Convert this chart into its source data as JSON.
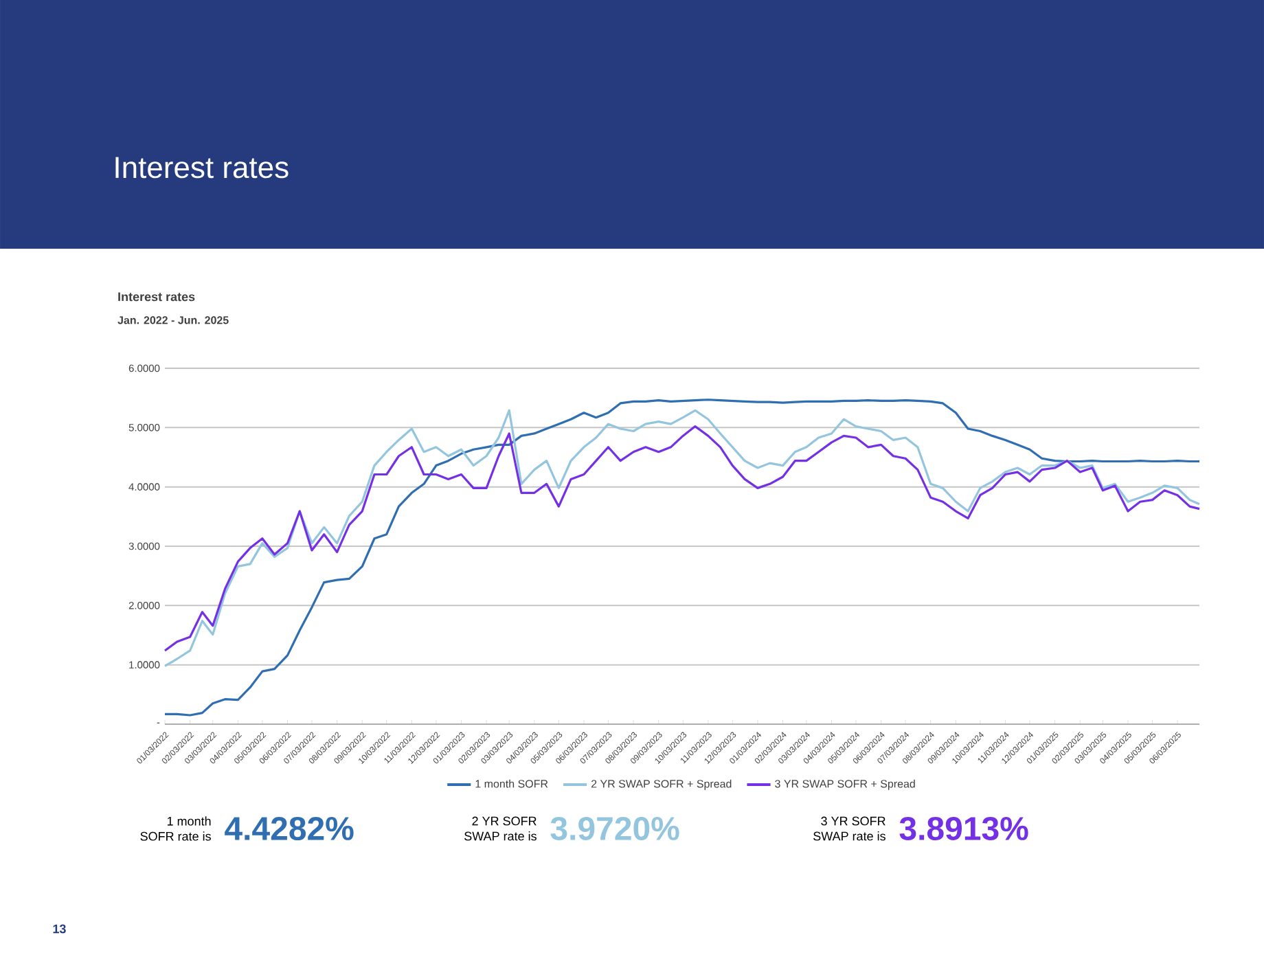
{
  "chart_data": {
    "type": "line",
    "title": "Interest rates",
    "subtitle": "Jan. 2022 - Jun. 2025",
    "annotations": [
      "Interest rates",
      "1 month SOFR rate is",
      "4.4282%",
      "2 YR SOFR SWAP rate is",
      "3.9720%",
      "3 YR SOFR SWAP rate is",
      "3.8913%",
      "13"
    ],
    "x": [
      "2022-01-03",
      "2022-01-18",
      "2022-02-03",
      "2022-02-18",
      "2022-03-03",
      "2022-03-18",
      "2022-04-03",
      "2022-04-18",
      "2022-05-03",
      "2022-05-18",
      "2022-06-03",
      "2022-06-18",
      "2022-07-03",
      "2022-07-18",
      "2022-08-03",
      "2022-08-18",
      "2022-09-03",
      "2022-09-18",
      "2022-10-03",
      "2022-10-18",
      "2022-11-03",
      "2022-11-18",
      "2022-12-03",
      "2022-12-18",
      "2023-01-03",
      "2023-01-18",
      "2023-02-03",
      "2023-02-18",
      "2023-03-03",
      "2023-03-18",
      "2023-04-03",
      "2023-04-18",
      "2023-05-03",
      "2023-05-18",
      "2023-06-03",
      "2023-06-18",
      "2023-07-03",
      "2023-07-18",
      "2023-08-03",
      "2023-08-18",
      "2023-09-03",
      "2023-09-18",
      "2023-10-03",
      "2023-10-18",
      "2023-11-03",
      "2023-11-18",
      "2023-12-03",
      "2023-12-18",
      "2024-01-03",
      "2024-01-18",
      "2024-02-03",
      "2024-02-18",
      "2024-03-03",
      "2024-03-18",
      "2024-04-03",
      "2024-04-18",
      "2024-05-03",
      "2024-05-18",
      "2024-06-03",
      "2024-06-18",
      "2024-07-03",
      "2024-07-18",
      "2024-08-03",
      "2024-08-18",
      "2024-09-03",
      "2024-09-18",
      "2024-10-03",
      "2024-10-18",
      "2024-11-03",
      "2024-11-18",
      "2024-12-03",
      "2024-12-18",
      "2025-01-03",
      "2025-01-18",
      "2025-02-03",
      "2025-02-18",
      "2025-03-03",
      "2025-03-18",
      "2025-04-03",
      "2025-04-18",
      "2025-05-03",
      "2025-05-18",
      "2025-06-03",
      "2025-06-18",
      "2025-06-30"
    ],
    "series": [
      {
        "name": "1 month SOFR",
        "color": "#2f6eb0",
        "values": [
          0.17,
          0.17,
          0.15,
          0.19,
          0.35,
          0.42,
          0.41,
          0.62,
          0.89,
          0.93,
          1.16,
          1.58,
          1.97,
          2.39,
          2.43,
          2.45,
          2.66,
          3.13,
          3.2,
          3.67,
          3.9,
          4.05,
          4.36,
          4.44,
          4.56,
          4.63,
          4.67,
          4.71,
          4.71,
          4.86,
          4.9,
          4.98,
          5.06,
          5.14,
          5.25,
          5.17,
          5.25,
          5.41,
          5.44,
          5.44,
          5.46,
          5.44,
          5.45,
          5.46,
          5.47,
          5.46,
          5.45,
          5.44,
          5.43,
          5.43,
          5.42,
          5.43,
          5.44,
          5.44,
          5.44,
          5.45,
          5.45,
          5.46,
          5.45,
          5.45,
          5.46,
          5.45,
          5.44,
          5.41,
          5.25,
          4.98,
          4.94,
          4.86,
          4.79,
          4.71,
          4.63,
          4.48,
          4.44,
          4.43,
          4.43,
          4.44,
          4.43,
          4.43,
          4.43,
          4.44,
          4.43,
          4.43,
          4.44,
          4.43,
          4.43
        ]
      },
      {
        "name": "2 YR SWAP SOFR + Spread",
        "color": "#93c5df",
        "values": [
          0.98,
          1.1,
          1.24,
          1.74,
          1.51,
          2.2,
          2.66,
          2.7,
          3.05,
          2.82,
          2.97,
          3.59,
          3.05,
          3.32,
          3.05,
          3.51,
          3.75,
          4.36,
          4.59,
          4.79,
          4.98,
          4.59,
          4.67,
          4.52,
          4.63,
          4.36,
          4.52,
          4.83,
          5.29,
          4.05,
          4.29,
          4.44,
          3.98,
          4.44,
          4.67,
          4.83,
          5.06,
          4.98,
          4.94,
          5.06,
          5.1,
          5.06,
          5.17,
          5.29,
          5.14,
          4.9,
          4.67,
          4.44,
          4.32,
          4.4,
          4.36,
          4.59,
          4.67,
          4.83,
          4.9,
          5.14,
          5.02,
          4.98,
          4.94,
          4.79,
          4.83,
          4.67,
          4.05,
          3.98,
          3.75,
          3.59,
          3.98,
          4.09,
          4.25,
          4.32,
          4.21,
          4.36,
          4.36,
          4.44,
          4.32,
          4.36,
          3.98,
          4.05,
          3.75,
          3.82,
          3.9,
          4.02,
          3.98,
          3.78,
          3.71
        ]
      },
      {
        "name": "3 YR SWAP SOFR + Spread",
        "color": "#7430e4",
        "values": [
          1.24,
          1.39,
          1.47,
          1.89,
          1.66,
          2.28,
          2.74,
          2.97,
          3.13,
          2.86,
          3.05,
          3.59,
          2.93,
          3.2,
          2.9,
          3.36,
          3.59,
          4.21,
          4.21,
          4.52,
          4.67,
          4.21,
          4.21,
          4.13,
          4.21,
          3.98,
          3.98,
          4.52,
          4.9,
          3.9,
          3.9,
          4.05,
          3.67,
          4.13,
          4.21,
          4.44,
          4.67,
          4.44,
          4.59,
          4.67,
          4.59,
          4.67,
          4.86,
          5.02,
          4.86,
          4.67,
          4.36,
          4.13,
          3.98,
          4.05,
          4.17,
          4.44,
          4.44,
          4.59,
          4.75,
          4.86,
          4.83,
          4.67,
          4.71,
          4.52,
          4.48,
          4.29,
          3.82,
          3.75,
          3.59,
          3.47,
          3.86,
          3.98,
          4.21,
          4.25,
          4.09,
          4.29,
          4.32,
          4.44,
          4.25,
          4.32,
          3.94,
          4.02,
          3.59,
          3.75,
          3.78,
          3.94,
          3.86,
          3.67,
          3.63
        ]
      }
    ],
    "xlim": [
      "2022-01-03",
      "2025-06-30"
    ],
    "xticks": [
      {
        "value": "2022-01-03",
        "label": "01/03/2022"
      },
      {
        "value": "2022-02-03",
        "label": "02/03/2022"
      },
      {
        "value": "2022-03-03",
        "label": "03/03/2022"
      },
      {
        "value": "2022-04-03",
        "label": "04/03/2022"
      },
      {
        "value": "2022-05-03",
        "label": "05/03/2022"
      },
      {
        "value": "2022-06-03",
        "label": "06/03/2022"
      },
      {
        "value": "2022-07-03",
        "label": "07/03/2022"
      },
      {
        "value": "2022-08-03",
        "label": "08/03/2022"
      },
      {
        "value": "2022-09-03",
        "label": "09/03/2022"
      },
      {
        "value": "2022-10-03",
        "label": "10/03/2022"
      },
      {
        "value": "2022-11-03",
        "label": "11/03/2022"
      },
      {
        "value": "2022-12-03",
        "label": "12/03/2022"
      },
      {
        "value": "2023-01-03",
        "label": "01/03/2023"
      },
      {
        "value": "2023-02-03",
        "label": "02/03/2023"
      },
      {
        "value": "2023-03-03",
        "label": "03/03/2023"
      },
      {
        "value": "2023-04-03",
        "label": "04/03/2023"
      },
      {
        "value": "2023-05-03",
        "label": "05/03/2023"
      },
      {
        "value": "2023-06-03",
        "label": "06/03/2023"
      },
      {
        "value": "2023-07-03",
        "label": "07/03/2023"
      },
      {
        "value": "2023-08-03",
        "label": "08/03/2023"
      },
      {
        "value": "2023-09-03",
        "label": "09/03/2023"
      },
      {
        "value": "2023-10-03",
        "label": "10/03/2023"
      },
      {
        "value": "2023-11-03",
        "label": "11/03/2023"
      },
      {
        "value": "2023-12-03",
        "label": "12/03/2023"
      },
      {
        "value": "2024-01-03",
        "label": "01/03/2024"
      },
      {
        "value": "2024-02-03",
        "label": "02/03/2024"
      },
      {
        "value": "2024-03-03",
        "label": "03/03/2024"
      },
      {
        "value": "2024-04-03",
        "label": "04/03/2024"
      },
      {
        "value": "2024-05-03",
        "label": "05/03/2024"
      },
      {
        "value": "2024-06-03",
        "label": "06/03/2024"
      },
      {
        "value": "2024-07-03",
        "label": "07/03/2024"
      },
      {
        "value": "2024-08-03",
        "label": "08/03/2024"
      },
      {
        "value": "2024-09-03",
        "label": "09/03/2024"
      },
      {
        "value": "2024-10-03",
        "label": "10/03/2024"
      },
      {
        "value": "2024-11-03",
        "label": "11/03/2024"
      },
      {
        "value": "2024-12-03",
        "label": "12/03/2024"
      },
      {
        "value": "2025-01-03",
        "label": "01/03/2025"
      },
      {
        "value": "2025-02-03",
        "label": "02/03/2025"
      },
      {
        "value": "2025-03-03",
        "label": "03/03/2025"
      },
      {
        "value": "2025-04-03",
        "label": "04/03/2025"
      },
      {
        "value": "2025-05-03",
        "label": "05/03/2025"
      },
      {
        "value": "2025-06-03",
        "label": "06/03/2025"
      }
    ],
    "ylim": [
      0,
      6
    ],
    "yticks": [
      {
        "value": 0,
        "label": "-"
      },
      {
        "value": 1,
        "label": "1.0000"
      },
      {
        "value": 2,
        "label": "2.0000"
      },
      {
        "value": 3,
        "label": "3.0000"
      },
      {
        "value": 4,
        "label": "4.0000"
      },
      {
        "value": 5,
        "label": "5.0000"
      },
      {
        "value": 6,
        "label": "6.0000"
      }
    ],
    "grid": "y",
    "legend": "bottom",
    "marker": "none",
    "line_style": "solid"
  }
}
